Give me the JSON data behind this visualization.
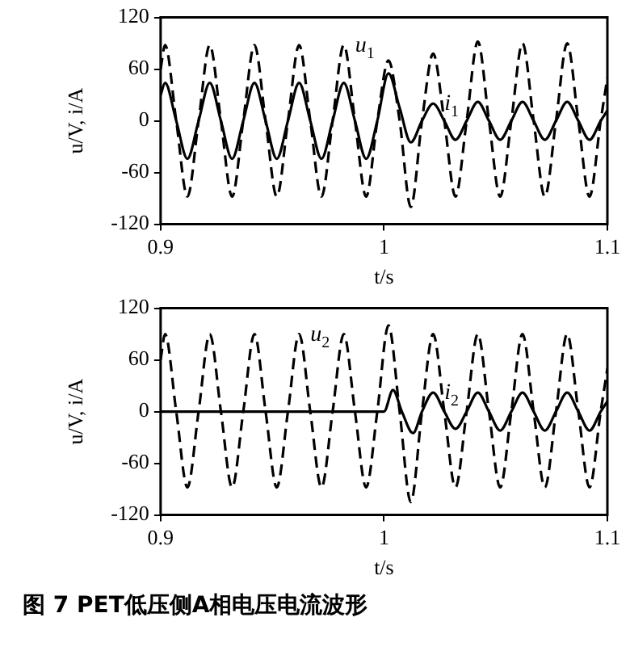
{
  "chart_data": [
    {
      "type": "line",
      "xlabel": "t/s",
      "ylabel": "u/V, i/A",
      "xlim": [
        0.9,
        1.1
      ],
      "xticks": [
        0.9,
        1,
        1.1
      ],
      "ylim": [
        -120,
        120
      ],
      "yticks": [
        -120,
        -60,
        0,
        60,
        120
      ],
      "legend": false,
      "marker": "none",
      "series": [
        {
          "color": "#000000",
          "line_style": "dashed",
          "x": [
            0.9,
            0.902,
            0.907,
            0.912,
            0.917,
            0.922,
            0.927,
            0.932,
            0.937,
            0.942,
            0.947,
            0.952,
            0.957,
            0.962,
            0.967,
            0.972,
            0.977,
            0.982,
            0.987,
            0.992,
            0.997,
            1.002,
            1.007,
            1.012,
            1.017,
            1.022,
            1.027,
            1.032,
            1.037,
            1.042,
            1.047,
            1.052,
            1.057,
            1.062,
            1.067,
            1.072,
            1.077,
            1.082,
            1.087,
            1.092,
            1.097,
            1.1
          ],
          "values": [
            60,
            88,
            0,
            -88,
            0,
            88,
            0,
            -88,
            0,
            88,
            0,
            -88,
            0,
            88,
            0,
            -88,
            0,
            88,
            0,
            -88,
            0,
            70,
            0,
            -100,
            0,
            78,
            0,
            -88,
            0,
            92,
            0,
            -88,
            0,
            90,
            0,
            -88,
            0,
            90,
            0,
            -88,
            0,
            50
          ]
        },
        {
          "color": "#000000",
          "line_style": "solid",
          "x": [
            0.9,
            0.902,
            0.907,
            0.912,
            0.917,
            0.922,
            0.927,
            0.932,
            0.937,
            0.942,
            0.947,
            0.952,
            0.957,
            0.962,
            0.967,
            0.972,
            0.977,
            0.982,
            0.987,
            0.992,
            0.997,
            1.002,
            1.007,
            1.012,
            1.017,
            1.022,
            1.027,
            1.032,
            1.037,
            1.042,
            1.047,
            1.052,
            1.057,
            1.062,
            1.067,
            1.072,
            1.077,
            1.082,
            1.087,
            1.092,
            1.097,
            1.1
          ],
          "values": [
            30,
            44,
            0,
            -44,
            0,
            44,
            0,
            -44,
            0,
            44,
            0,
            -44,
            0,
            44,
            0,
            -44,
            0,
            44,
            0,
            -44,
            0,
            55,
            15,
            -25,
            0,
            20,
            0,
            -22,
            0,
            22,
            0,
            -22,
            0,
            22,
            0,
            -22,
            0,
            22,
            0,
            -22,
            0,
            12
          ]
        }
      ],
      "annotations": [
        {
          "text": "u$_{1}$",
          "x": 0.982,
          "y": 88
        },
        {
          "text": "i$_{1}$",
          "x": 1.022,
          "y": 20
        }
      ]
    },
    {
      "type": "line",
      "xlabel": "t/s",
      "ylabel": "u/V, i/A",
      "xlim": [
        0.9,
        1.1
      ],
      "xticks": [
        0.9,
        1,
        1.1
      ],
      "ylim": [
        -120,
        120
      ],
      "yticks": [
        -120,
        -60,
        0,
        60,
        120
      ],
      "legend": false,
      "marker": "none",
      "series": [
        {
          "color": "#000000",
          "line_style": "dashed",
          "x": [
            0.9,
            0.902,
            0.907,
            0.912,
            0.917,
            0.922,
            0.927,
            0.932,
            0.937,
            0.942,
            0.947,
            0.952,
            0.957,
            0.962,
            0.967,
            0.972,
            0.977,
            0.982,
            0.987,
            0.992,
            0.997,
            1.002,
            1.007,
            1.012,
            1.017,
            1.022,
            1.027,
            1.032,
            1.037,
            1.042,
            1.047,
            1.052,
            1.057,
            1.062,
            1.067,
            1.072,
            1.077,
            1.082,
            1.087,
            1.092,
            1.097,
            1.1
          ],
          "values": [
            60,
            90,
            0,
            -88,
            0,
            90,
            0,
            -88,
            0,
            90,
            0,
            -88,
            0,
            90,
            0,
            -88,
            0,
            90,
            0,
            -88,
            0,
            100,
            0,
            -105,
            0,
            90,
            0,
            -88,
            0,
            90,
            0,
            -88,
            0,
            90,
            0,
            -88,
            0,
            90,
            0,
            -88,
            0,
            50
          ]
        },
        {
          "color": "#000000",
          "line_style": "solid",
          "x": [
            0.9,
            1.0,
            1.004,
            1.008,
            1.013,
            1.017,
            1.022,
            1.027,
            1.032,
            1.037,
            1.042,
            1.047,
            1.052,
            1.057,
            1.062,
            1.067,
            1.072,
            1.077,
            1.082,
            1.087,
            1.092,
            1.097,
            1.1
          ],
          "values": [
            0,
            0,
            25,
            0,
            -25,
            0,
            22,
            0,
            -20,
            0,
            22,
            0,
            -22,
            0,
            22,
            0,
            -22,
            0,
            22,
            0,
            -22,
            0,
            12
          ]
        }
      ],
      "annotations": [
        {
          "text": "u$_{2}$",
          "x": 0.962,
          "y": 90
        },
        {
          "text": "i$_{2}$",
          "x": 1.022,
          "y": 22
        },
        "图 7  PET低压侧A相电压电流波形"
      ]
    }
  ]
}
